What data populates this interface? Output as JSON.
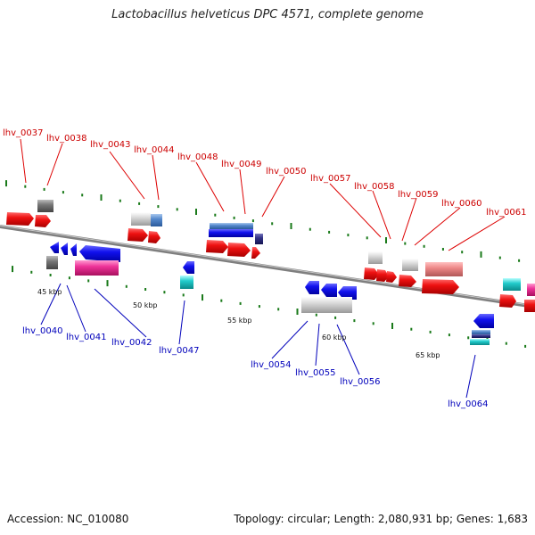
{
  "title": "Lactobacillus helveticus DPC 4571, complete genome",
  "footer": {
    "accession": "Accession: NC_010080",
    "summary": "Topology: circular; Length: 2,080,931 bp; Genes: 1,683"
  },
  "colors": {
    "forward_cds": "#ee1111",
    "reverse_cds": "#1111ee",
    "hypothetical": "#cccccc",
    "rna": "#ee3399",
    "highlight": "#22cccc",
    "label_top": "#cc0000",
    "label_bottom": "#0000bb",
    "backbone": "#888888",
    "tick": "#1a7a1a"
  },
  "kbp_labels": [
    "45 kbp",
    "50 kbp",
    "55 kbp",
    "60 kbp",
    "65 kbp"
  ],
  "genes_top": [
    "lhv_0037",
    "lhv_0038",
    "lhv_0043",
    "lhv_0044",
    "lhv_0048",
    "lhv_0049",
    "lhv_0050",
    "lhv_0057",
    "lhv_0058",
    "lhv_0059",
    "lhv_0060",
    "lhv_0061"
  ],
  "genes_bottom": [
    "lhv_0040",
    "lhv_0041",
    "lhv_0042",
    "lhv_0047",
    "lhv_0054",
    "lhv_0055",
    "lhv_0056",
    "lhv_0064"
  ]
}
